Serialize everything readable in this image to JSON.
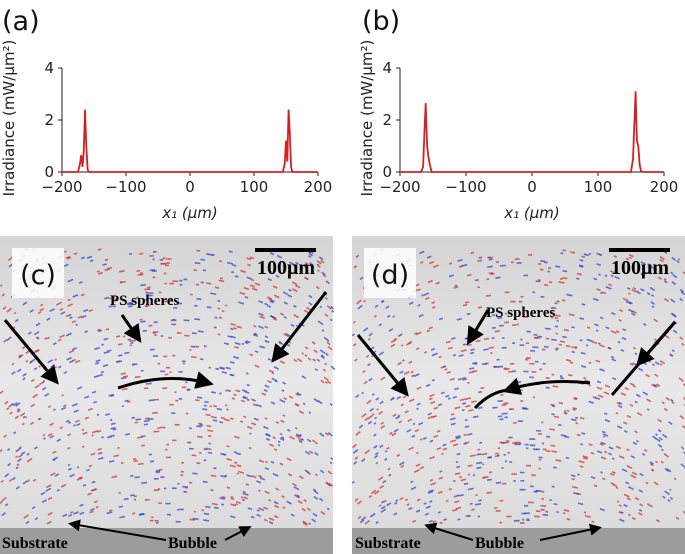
{
  "chart_data": [
    {
      "type": "line",
      "panel_label": "(a)",
      "x_label": "x₁ (μm)",
      "y_label": "Irradiance (mW/μm²)",
      "xlim": [
        -200,
        200
      ],
      "xticks": [
        {
          "value": -200,
          "label": "−200"
        },
        {
          "value": -100,
          "label": "−100"
        },
        0,
        100,
        200
      ],
      "ylim": [
        0,
        4
      ],
      "yticks": [
        0,
        2,
        4
      ],
      "color": "#d62020",
      "x": [
        -200,
        -175,
        -172,
        -170,
        -168,
        -166,
        -164,
        -162,
        -160,
        -158,
        -155,
        145,
        148,
        150,
        152,
        154,
        156,
        158,
        160,
        165,
        200
      ],
      "y": [
        0,
        0,
        0.3,
        0.65,
        0.2,
        0.8,
        2.4,
        1.0,
        0.1,
        0,
        0,
        0,
        0.3,
        1.2,
        0.4,
        2.4,
        1.5,
        0.2,
        0,
        0,
        0
      ]
    },
    {
      "type": "line",
      "panel_label": "(b)",
      "x_label": "x₁ (μm)",
      "y_label": "Irradiance (mW/μm²)",
      "xlim": [
        -200,
        200
      ],
      "xticks": [
        {
          "value": -200,
          "label": "−200"
        },
        {
          "value": -100,
          "label": "−100"
        },
        0,
        100,
        200
      ],
      "ylim": [
        0,
        4
      ],
      "yticks": [
        0,
        2,
        4
      ],
      "color": "#d62020",
      "x": [
        -200,
        -168,
        -165,
        -163,
        -161,
        -159,
        -157,
        -155,
        -152,
        -148,
        145,
        150,
        153,
        155,
        157,
        159,
        161,
        163,
        165,
        168,
        200
      ],
      "y": [
        0,
        0,
        0.2,
        1.5,
        2.65,
        1.0,
        0.6,
        0.3,
        0,
        0,
        0,
        0,
        0.5,
        1.8,
        3.1,
        1.2,
        1.0,
        0.3,
        0.05,
        0,
        0
      ]
    }
  ],
  "images": [
    {
      "label": "(c)",
      "scale_bar": "100μm",
      "particles": "PS spheres",
      "substrate": "Substrate",
      "bubble": "Bubble"
    },
    {
      "label": "(d)",
      "scale_bar": "100μm",
      "particles": "PS spheres",
      "substrate": "Substrate",
      "bubble": "Bubble"
    }
  ]
}
